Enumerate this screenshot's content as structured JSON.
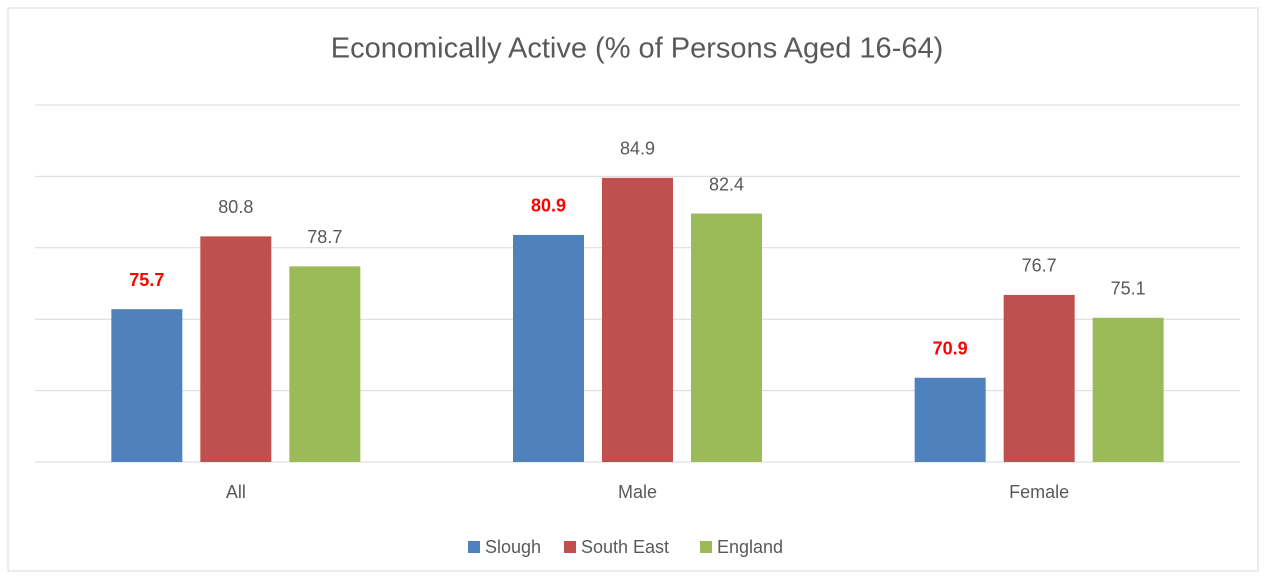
{
  "chart_data": {
    "type": "bar",
    "title": "Economically Active (% of Persons Aged 16-64)",
    "categories": [
      "All",
      "Male",
      "Female"
    ],
    "series": [
      {
        "name": "Slough",
        "color": "#4f81bd",
        "label_color": "#ff0000",
        "label_bold": true,
        "values": [
          75.7,
          80.9,
          70.9
        ]
      },
      {
        "name": "South East",
        "color": "#c0504d",
        "label_color": "#595959",
        "label_bold": false,
        "values": [
          80.8,
          84.9,
          76.7
        ]
      },
      {
        "name": "England",
        "color": "#9bbb59",
        "label_color": "#595959",
        "label_bold": false,
        "values": [
          78.7,
          82.4,
          75.1
        ]
      }
    ],
    "ylim": [
      65,
      90
    ],
    "yticks": [
      65,
      70,
      75,
      80,
      85,
      90
    ],
    "grid": true,
    "legend": "bottom"
  }
}
